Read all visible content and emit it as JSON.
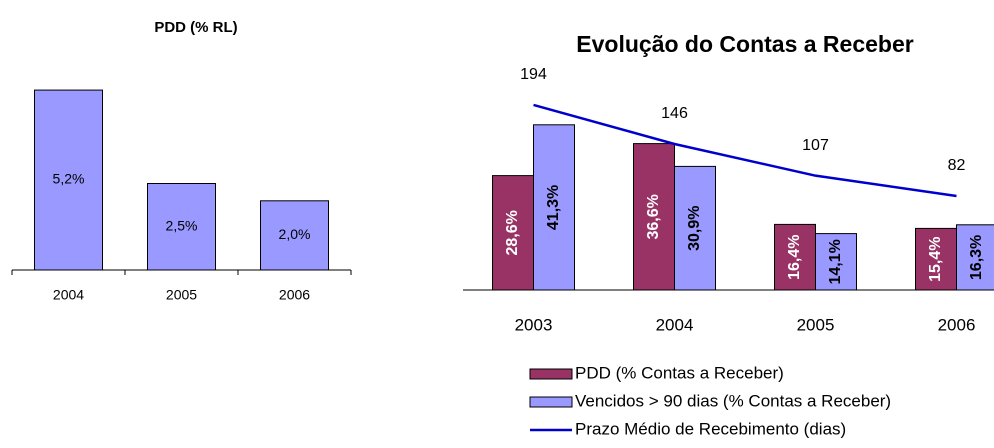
{
  "chart_data": [
    {
      "type": "bar",
      "title": "PDD (% RL)",
      "categories": [
        "2004",
        "2005",
        "2006"
      ],
      "values": [
        5.2,
        2.5,
        2.0
      ],
      "value_labels": [
        "5,2%",
        "2,5%",
        "2,0%"
      ],
      "color": "#9999ff"
    },
    {
      "type": "bar-line",
      "title": "Evolução do Contas a Receber",
      "categories": [
        "2003",
        "2004",
        "2005",
        "2006"
      ],
      "series": [
        {
          "name": "PDD (% Contas a Receber)",
          "color": "#993366",
          "values": [
            28.6,
            36.6,
            16.4,
            15.4
          ],
          "value_labels": [
            "28,6%",
            "36,6%",
            "16,4%",
            "15,4%"
          ]
        },
        {
          "name": "Vencidos > 90 dias (% Contas a Receber)",
          "color": "#9999ff",
          "values": [
            41.3,
            30.9,
            14.1,
            16.3
          ],
          "value_labels": [
            "41,3%",
            "30,9%",
            "14,1%",
            "16,3%"
          ]
        },
        {
          "name": "Prazo Médio de Recebimento (dias)",
          "color": "#0000cc",
          "values": [
            194,
            146,
            107,
            82
          ],
          "axis": "y2"
        }
      ]
    }
  ]
}
